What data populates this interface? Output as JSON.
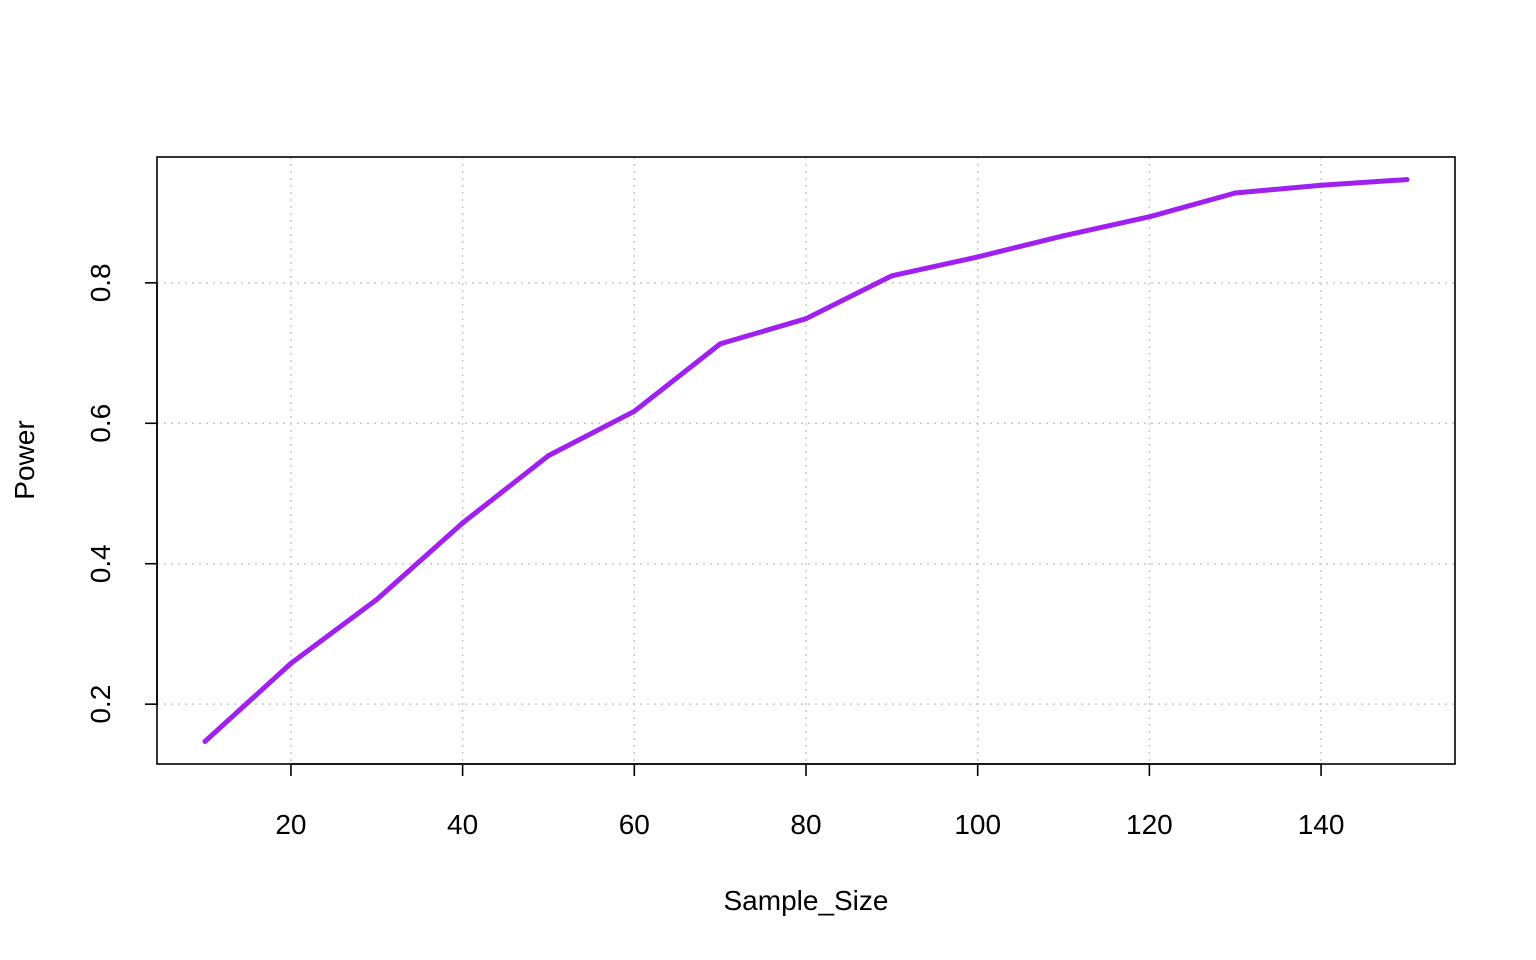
{
  "chart_data": {
    "type": "line",
    "title": "",
    "xlabel": "Sample_Size",
    "ylabel": "Power",
    "x": [
      10,
      20,
      30,
      40,
      50,
      60,
      70,
      80,
      90,
      100,
      110,
      120,
      130,
      140,
      150
    ],
    "series": [
      {
        "values": [
          0.147,
          0.258,
          0.349,
          0.458,
          0.554,
          0.617,
          0.713,
          0.749,
          0.81,
          0.837,
          0.867,
          0.894,
          0.928,
          0.939,
          0.947
        ],
        "color": "#a020f0"
      }
    ],
    "xticks": [
      20,
      40,
      60,
      80,
      100,
      120,
      140
    ],
    "xtick_labels": [
      "20",
      "40",
      "60",
      "80",
      "100",
      "120",
      "140"
    ],
    "yticks": [
      0.2,
      0.4,
      0.6,
      0.8
    ],
    "ytick_labels": [
      "0.2",
      "0.4",
      "0.6",
      "0.8"
    ],
    "xlim": [
      4.4,
      155.6
    ],
    "ylim": [
      0.1148,
      0.9792
    ],
    "grid": true,
    "legend": "none"
  }
}
